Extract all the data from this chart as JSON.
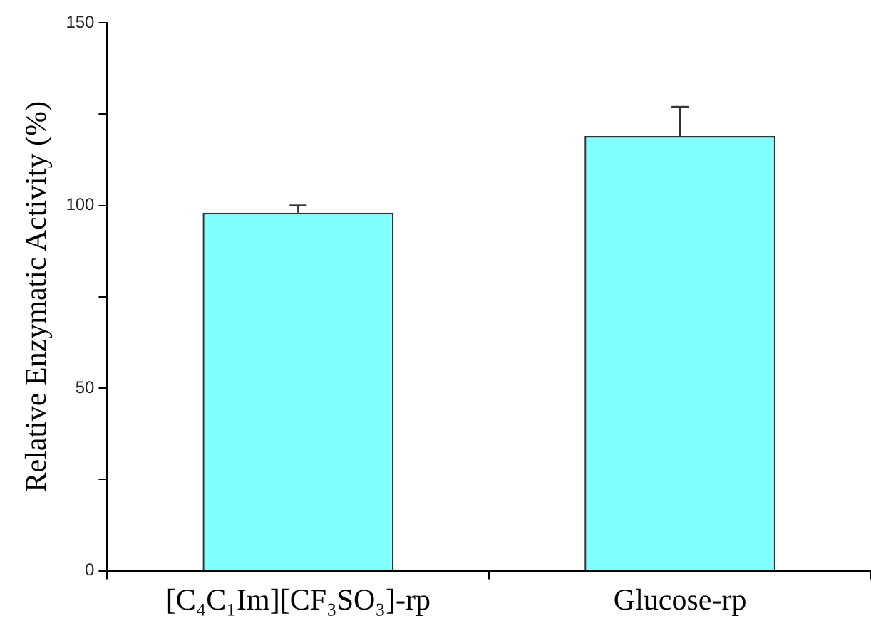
{
  "chart_data": {
    "type": "bar",
    "ylabel": "Relative Enzymatic Activity (%)",
    "categories": [
      "[C₄C₁Im][CF₃SO₃]-rp",
      "Glucose-rp"
    ],
    "values": [
      98,
      119
    ],
    "color": "#80ffff",
    "errors": [
      [
        98,
        100
      ],
      [
        119,
        127
      ]
    ],
    "ylim": [
      0,
      150
    ],
    "yticks": [
      0,
      {
        "value": 25,
        "label": null
      },
      50,
      {
        "value": 75,
        "label": null
      },
      100,
      {
        "value": 125,
        "label": null
      },
      150
    ],
    "grid": false,
    "legend": false
  }
}
